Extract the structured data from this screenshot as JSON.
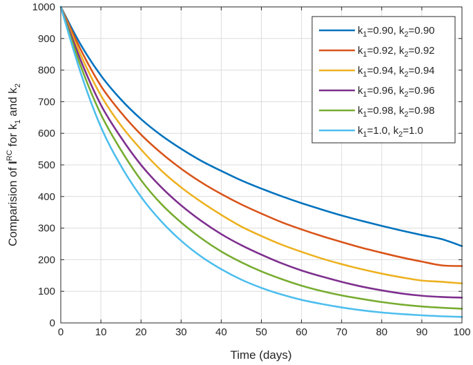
{
  "chart_data": {
    "type": "line",
    "xlabel": "Time (days)",
    "ylabel_parts": {
      "a": "Comparision of ",
      "b": "I",
      "sup": "RC",
      "c": " for k",
      "sub1": "1",
      "d": " and k",
      "sub2": "2"
    },
    "xlim": [
      0,
      100
    ],
    "ylim": [
      0,
      1000
    ],
    "xticks": [
      "0",
      "10",
      "20",
      "30",
      "40",
      "50",
      "60",
      "70",
      "80",
      "90",
      "100"
    ],
    "yticks": [
      "0",
      "100",
      "200",
      "300",
      "400",
      "500",
      "600",
      "700",
      "800",
      "900",
      "1000"
    ],
    "grid": true,
    "legend_position": "top-right",
    "x": [
      0,
      5,
      10,
      15,
      20,
      25,
      30,
      35,
      40,
      45,
      50,
      55,
      60,
      65,
      70,
      75,
      80,
      85,
      90,
      95,
      100
    ],
    "series": [
      {
        "k1": "0.90",
        "k2": "0.90",
        "color": "#0072BD",
        "values": [
          1000,
          880,
          783,
          707,
          645,
          594,
          551,
          513,
          481,
          451,
          425,
          401,
          379,
          359,
          340,
          323,
          307,
          292,
          278,
          265,
          243
        ]
      },
      {
        "k1": "0.92",
        "k2": "0.92",
        "color": "#D95319",
        "values": [
          1000,
          864,
          750,
          666,
          596,
          538,
          488,
          445,
          408,
          375,
          346,
          319,
          296,
          275,
          256,
          238,
          222,
          207,
          194,
          182,
          180
        ]
      },
      {
        "k1": "0.94",
        "k2": "0.94",
        "color": "#EDB120",
        "values": [
          1000,
          847,
          720,
          625,
          549,
          483,
          429,
          383,
          342,
          305,
          275,
          248,
          225,
          204,
          186,
          170,
          156,
          144,
          134,
          130,
          125
        ]
      },
      {
        "k1": "0.96",
        "k2": "0.96",
        "color": "#7E2F8E",
        "values": [
          1000,
          830,
          690,
          587,
          500,
          430,
          372,
          323,
          281,
          246,
          216,
          189,
          166,
          147,
          130,
          115,
          103,
          93,
          86,
          82,
          80
        ]
      },
      {
        "k1": "0.98",
        "k2": "0.98",
        "color": "#77AC30",
        "values": [
          1000,
          812,
          660,
          547,
          452,
          377,
          318,
          268,
          226,
          192,
          163,
          139,
          118,
          101,
          87,
          76,
          66,
          58,
          52,
          48,
          45
        ]
      },
      {
        "k1": "1.0",
        "k2": "1.0",
        "color": "#4DBEEE",
        "values": [
          1000,
          790,
          620,
          497,
          399,
          322,
          260,
          210,
          170,
          137,
          111,
          90,
          73,
          60,
          49,
          40,
          33,
          28,
          24,
          21,
          19
        ]
      }
    ]
  }
}
